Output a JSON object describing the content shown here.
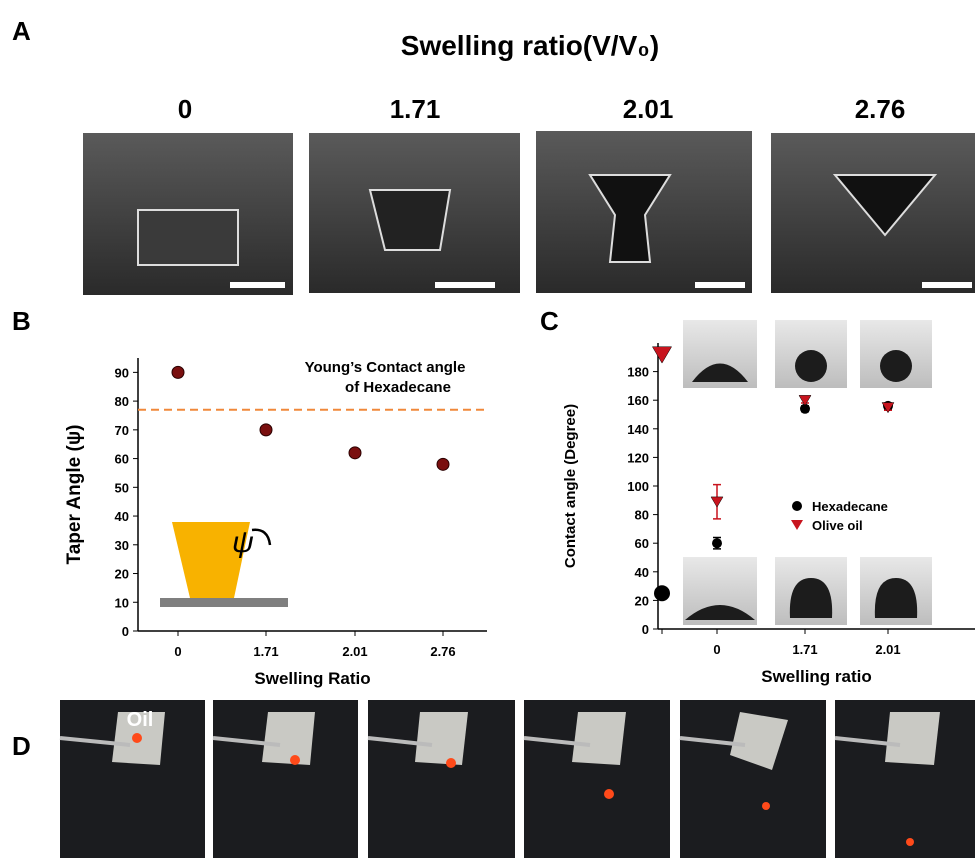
{
  "panel_labels": [
    "A",
    "B",
    "C",
    "D"
  ],
  "panel_a": {
    "title": "Swelling ratio(V/V₀)",
    "labels": [
      "0",
      "1.71",
      "2.01",
      "2.76"
    ]
  },
  "panel_d": {
    "label": "Oil"
  },
  "chart_data": [
    {
      "type": "scatter",
      "x_label": "Swelling Ratio",
      "y_label": "Taper Angle (ψ)",
      "categories": [
        "0",
        "1.71",
        "2.01",
        "2.76"
      ],
      "values": [
        90,
        70,
        62,
        58
      ],
      "color": "#7a0f0f",
      "ylim": [
        0,
        95
      ],
      "yticks": [
        0,
        10,
        20,
        30,
        40,
        50,
        60,
        70,
        80,
        90
      ],
      "reference_line": {
        "value": 77,
        "color": "#f0883a",
        "label": [
          "Young’s Contact angle",
          "of Hexadecane"
        ]
      },
      "inset_label": "ψ"
    },
    {
      "type": "scatter",
      "x_label": "Swelling ratio",
      "y_label": "Contact angle (Degree)",
      "categories": [
        null,
        "0",
        "1.71",
        "2.01"
      ],
      "series": [
        {
          "name": "Hexadecane",
          "color": "#000000",
          "marker": "circle",
          "values": [
            25,
            60,
            154,
            156
          ],
          "errors": [
            null,
            4,
            2,
            2
          ]
        },
        {
          "name": "Olive oil",
          "color": "#c8141e",
          "marker": "triangle",
          "values": [
            192,
            89,
            160,
            155
          ],
          "errors": [
            null,
            12,
            2,
            2
          ]
        }
      ],
      "ylim": [
        0,
        200
      ],
      "yticks": [
        0,
        20,
        40,
        60,
        80,
        100,
        120,
        140,
        160,
        180
      ],
      "legend": "center right"
    }
  ]
}
